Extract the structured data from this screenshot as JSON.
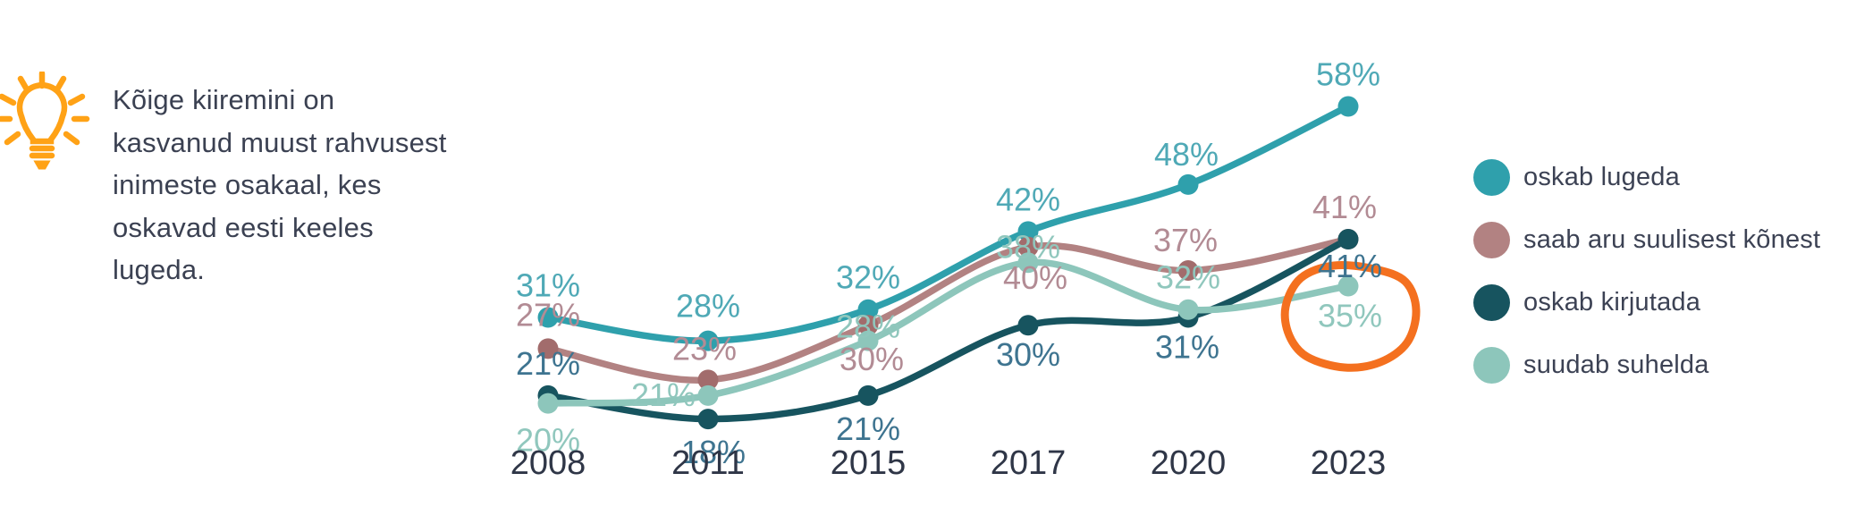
{
  "insight": {
    "icon": "lightbulb-icon",
    "icon_color": "#FFA216",
    "text": "Kõige kiiremini on kasvanud muust rahvusest inimeste osakaal, kes oskavad eesti keeles lugeda.",
    "text_color": "#3B4152"
  },
  "chart_data": {
    "type": "line",
    "categories": [
      "2008",
      "2011",
      "2015",
      "2017",
      "2020",
      "2023"
    ],
    "series": [
      {
        "name": "oskab lugeda",
        "color": "#2FA0AC",
        "dot_color": "#2FA0AC",
        "label_color": "#4FA9B6",
        "values": [
          31,
          28,
          32,
          42,
          48,
          58
        ],
        "label_offsets": [
          [
            0,
            -36
          ],
          [
            0,
            -39
          ],
          [
            0,
            -36
          ],
          [
            0,
            -36
          ],
          [
            -2,
            -34
          ],
          [
            0,
            -36
          ]
        ]
      },
      {
        "name": "saab aru suulisest kõnest",
        "color": "#B28282",
        "dot_color": "#A26C6C",
        "label_color": "#B28B94",
        "values": [
          27,
          23,
          30,
          40,
          37,
          41
        ],
        "label_offsets": [
          [
            0,
            -38
          ],
          [
            -4,
            -35
          ],
          [
            4,
            38
          ],
          [
            8,
            34
          ],
          [
            -3,
            -34
          ],
          [
            -4,
            -36
          ]
        ]
      },
      {
        "name": "oskab kirjutada",
        "color": "#17545F",
        "dot_color": "#17545F",
        "label_color": "#3E7490",
        "values": [
          21,
          18,
          21,
          30,
          31,
          41
        ],
        "label_offsets": [
          [
            0,
            -36
          ],
          [
            6,
            37
          ],
          [
            0,
            37
          ],
          [
            0,
            33
          ],
          [
            -1,
            33
          ],
          [
            2,
            30
          ]
        ]
      },
      {
        "name": "suudab suhelda",
        "color": "#8DC6BB",
        "dot_color": "#8DC6BB",
        "label_color": "#90C7BD",
        "values": [
          20,
          21,
          28,
          38,
          32,
          35
        ],
        "label_offsets": [
          [
            0,
            41
          ],
          [
            -50,
            -1
          ],
          [
            0,
            -16
          ],
          [
            0,
            -18
          ],
          [
            0,
            -36
          ],
          [
            2,
            33
          ]
        ]
      }
    ],
    "value_suffix": "%",
    "ylim": [
      14,
      62
    ],
    "grid": false,
    "legend_position": "right",
    "x_axis_color": "#2F3647",
    "annotation": {
      "type": "hand-drawn-circle",
      "series": "suudab suhelda",
      "category": "2023",
      "label": "35%",
      "color": "#F4701F"
    }
  }
}
